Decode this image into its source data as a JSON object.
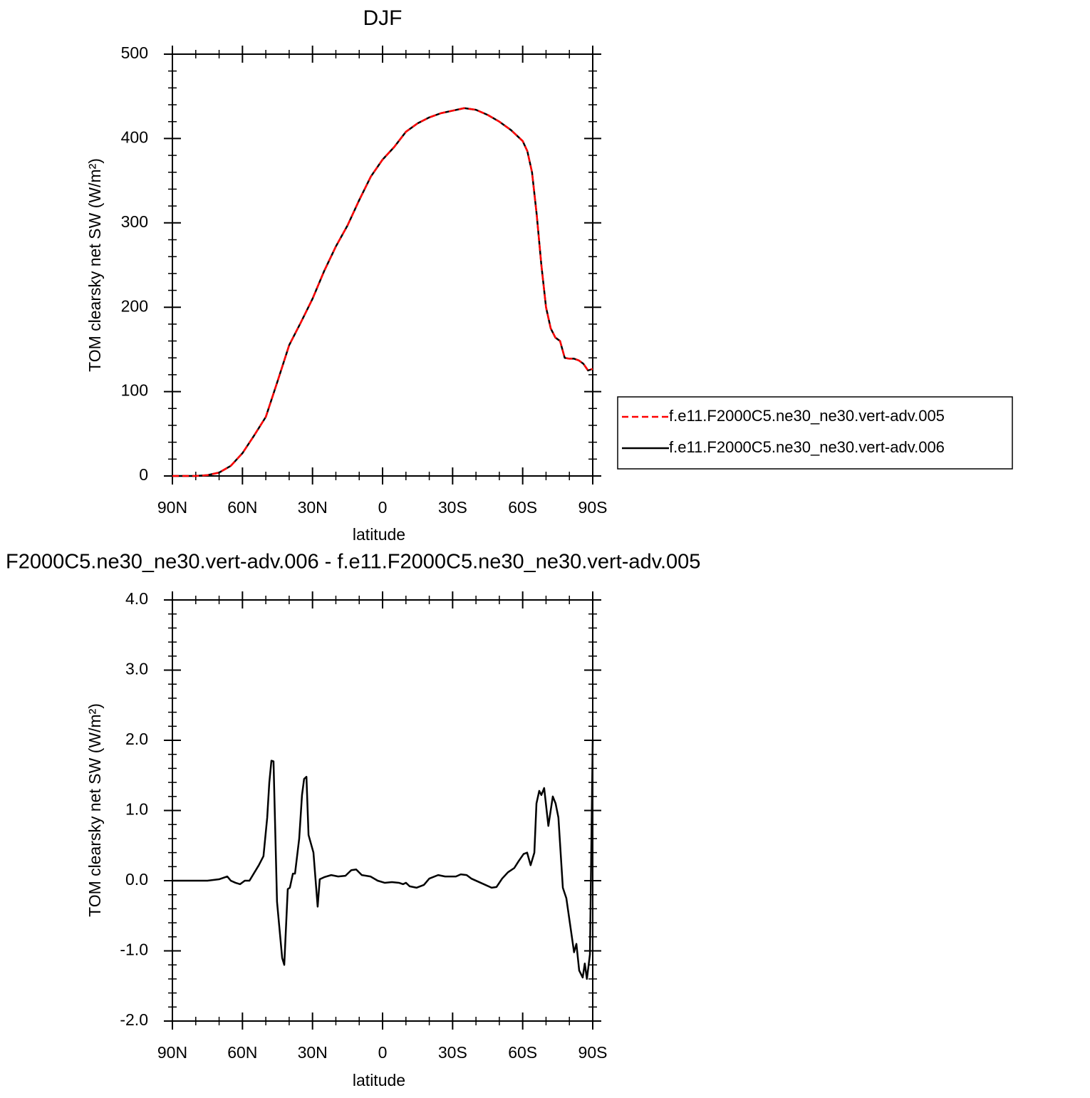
{
  "chart_data": [
    {
      "type": "line",
      "title": "DJF",
      "x_label": "latitude",
      "y_label": "TOM clearsky net SW (W/m²)",
      "x": [
        90,
        85,
        80,
        75,
        70,
        65,
        60,
        55,
        50,
        45,
        40,
        35,
        30,
        25,
        20,
        15,
        10,
        5,
        0,
        -5,
        -10,
        -15,
        -20,
        -25,
        -30,
        -35,
        -40,
        -45,
        -50,
        -55,
        -60,
        -62,
        -64,
        -66,
        -68,
        -70,
        -72,
        -74,
        -76,
        -78,
        -80,
        -82,
        -84,
        -86,
        -88,
        -90
      ],
      "series": [
        {
          "name": "f.e11.F2000C5.ne30_ne30.vert-adv.005",
          "color": "#ff0000",
          "linestyle": "dashed",
          "values": [
            0,
            0,
            0,
            1,
            4,
            12,
            27,
            48,
            70,
            112,
            155,
            182,
            210,
            243,
            272,
            297,
            327,
            355,
            375,
            390,
            408,
            418,
            425,
            430,
            433,
            436,
            434,
            428,
            420,
            410,
            397,
            385,
            360,
            310,
            250,
            200,
            175,
            164,
            160,
            140,
            139,
            139,
            137,
            133,
            125,
            127
          ]
        },
        {
          "name": "f.e11.F2000C5.ne30_ne30.vert-adv.006",
          "color": "#000000",
          "linestyle": "solid",
          "values": [
            0,
            0,
            0,
            1,
            4,
            12,
            27,
            48,
            70,
            112,
            155,
            182,
            210,
            243,
            272,
            297,
            327,
            355,
            375,
            390,
            408,
            418,
            425,
            430,
            433,
            436,
            434,
            428,
            420,
            410,
            397,
            385,
            360,
            310,
            250,
            200,
            175,
            164,
            160,
            140,
            139,
            139,
            137,
            133,
            125,
            127
          ]
        }
      ],
      "xlim": [
        90,
        -90
      ],
      "ylim": [
        0,
        500
      ],
      "xticks": [
        {
          "value": 90,
          "label": "90N"
        },
        {
          "value": 60,
          "label": "60N"
        },
        {
          "value": 30,
          "label": "30N"
        },
        0,
        {
          "value": -30,
          "label": "30S"
        },
        {
          "value": -60,
          "label": "60S"
        },
        {
          "value": -90,
          "label": "90S"
        }
      ],
      "xminorticks": [
        80,
        70,
        50,
        40,
        20,
        10,
        -10,
        -20,
        -40,
        -50,
        -70,
        -80
      ],
      "yticks": [
        0,
        100,
        200,
        300,
        400,
        500
      ],
      "yminorticks": [
        20,
        40,
        60,
        80,
        120,
        140,
        160,
        180,
        220,
        240,
        260,
        280,
        320,
        340,
        360,
        380,
        420,
        440,
        460,
        480
      ],
      "legend": "right"
    },
    {
      "type": "line",
      "title": "F2000C5.ne30_ne30.vert-adv.006 - f.e11.F2000C5.ne30_ne30.vert-adv.005",
      "x_label": "latitude",
      "y_label": "TOM clearsky net SW (W/m²)",
      "x": [
        90,
        80,
        75,
        70,
        66.5,
        65,
        63,
        61,
        59,
        57,
        53,
        51,
        49.4,
        48.5,
        47.6,
        46.7,
        45.2,
        43,
        42.1,
        40.6,
        39.7,
        38.4,
        37.5,
        35.7,
        34.5,
        33.6,
        32.6,
        31.7,
        29.6,
        27.8,
        26.9,
        25,
        22,
        19,
        15.9,
        13.4,
        11.3,
        8.9,
        5.2,
        2.1,
        -0.9,
        -4,
        -7,
        -8.8,
        -10,
        -11.6,
        -14.6,
        -17.7,
        -20,
        -23.8,
        -26.8,
        -31.4,
        -33.5,
        -36,
        -38,
        -42,
        -46.7,
        -48.8,
        -51.2,
        -53.7,
        -56.4,
        -58.3,
        -60.4,
        -61.9,
        -63.4,
        -65,
        -65.9,
        -67.1,
        -68,
        -69.2,
        -71,
        -72.9,
        -74.1,
        -75.3,
        -77.2,
        -78.7,
        -80.2,
        -82,
        -83,
        -84.2,
        -85.7,
        -86.6,
        -87.5,
        -88.8,
        -90
      ],
      "color": "#000000",
      "values": [
        0,
        0,
        0,
        0.02,
        0.06,
        0,
        -0.03,
        -0.05,
        0,
        0,
        0.22,
        0.35,
        0.9,
        1.4,
        1.71,
        1.7,
        -0.3,
        -1.1,
        -1.2,
        -0.12,
        -0.1,
        0.1,
        0.1,
        0.6,
        1.22,
        1.45,
        1.48,
        0.65,
        0.4,
        -0.37,
        0.02,
        0.05,
        0.08,
        0.06,
        0.07,
        0.15,
        0.16,
        0.08,
        0.06,
        0,
        -0.03,
        -0.02,
        -0.03,
        -0.05,
        -0.03,
        -0.08,
        -0.1,
        -0.06,
        0.03,
        0.08,
        0.06,
        0.06,
        0.09,
        0.08,
        0.03,
        -0.03,
        -0.1,
        -0.09,
        0.03,
        0.12,
        0.18,
        0.28,
        0.38,
        0.4,
        0.22,
        0.4,
        1.1,
        1.28,
        1.22,
        1.32,
        0.78,
        1.2,
        1.1,
        0.9,
        -0.1,
        -0.25,
        -0.6,
        -1.02,
        -0.9,
        -1.28,
        -1.38,
        -1.18,
        -1.4,
        -1.05,
        2.0
      ],
      "xlim": [
        90,
        -90
      ],
      "ylim": [
        -2,
        4
      ],
      "xticks": [
        {
          "value": 90,
          "label": "90N"
        },
        {
          "value": 60,
          "label": "60N"
        },
        {
          "value": 30,
          "label": "30N"
        },
        0,
        {
          "value": -30,
          "label": "30S"
        },
        {
          "value": -60,
          "label": "60S"
        },
        {
          "value": -90,
          "label": "90S"
        }
      ],
      "xminorticks": [
        80,
        70,
        50,
        40,
        20,
        10,
        -10,
        -20,
        -40,
        -50,
        -70,
        -80
      ],
      "yticks": [
        {
          "value": -2,
          "label": "-2.0"
        },
        {
          "value": -1,
          "label": "-1.0"
        },
        {
          "value": 0,
          "label": "0.0"
        },
        {
          "value": 1,
          "label": "1.0"
        },
        {
          "value": 2,
          "label": "2.0"
        },
        {
          "value": 3,
          "label": "3.0"
        },
        {
          "value": 4,
          "label": "4.0"
        }
      ],
      "yminorticks": [
        -1.8,
        -1.6,
        -1.4,
        -1.2,
        -0.8,
        -0.6,
        -0.4,
        -0.2,
        0.2,
        0.4,
        0.6,
        0.8,
        1.2,
        1.4,
        1.6,
        1.8,
        2.2,
        2.4,
        2.6,
        2.8,
        3.2,
        3.4,
        3.6,
        3.8
      ]
    }
  ]
}
